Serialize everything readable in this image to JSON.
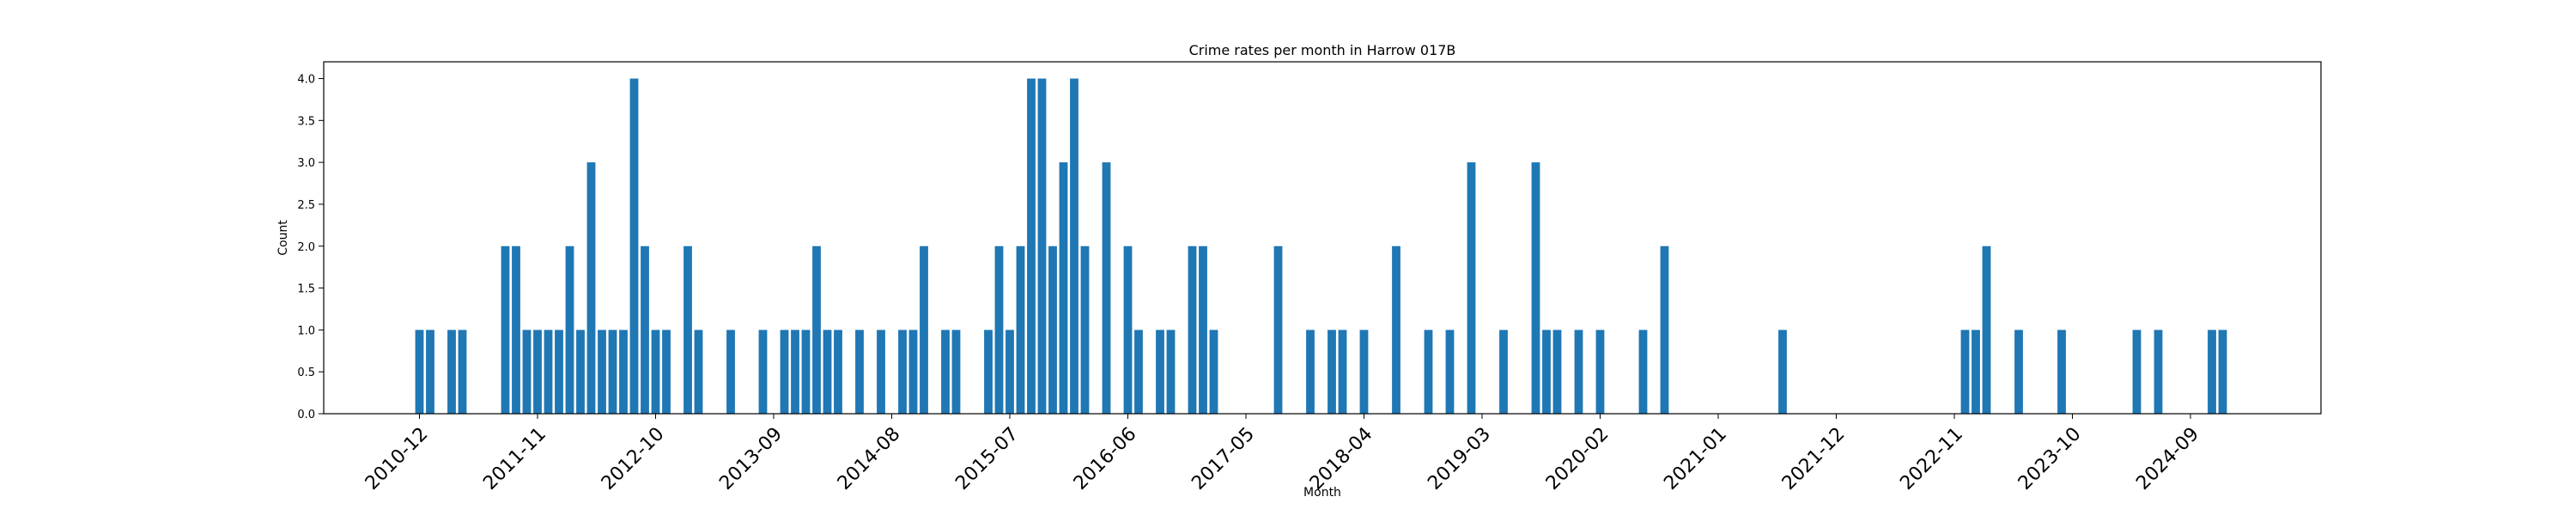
{
  "chart_data": {
    "type": "bar",
    "title": "Crime rates per month in Harrow 017B",
    "xlabel": "Month",
    "ylabel": "Count",
    "ylim": [
      0,
      4.2
    ],
    "yticks": [
      "0.0",
      "0.5",
      "1.0",
      "1.5",
      "2.0",
      "2.5",
      "3.0",
      "3.5",
      "4.0"
    ],
    "xticks": [
      "2010-12",
      "2011-11",
      "2012-10",
      "2013-09",
      "2014-08",
      "2015-07",
      "2016-06",
      "2017-05",
      "2018-04",
      "2019-03",
      "2020-02",
      "2021-01",
      "2021-12",
      "2022-11",
      "2023-10",
      "2024-09"
    ],
    "bar_color": "#1f77b4",
    "grid": false,
    "categories": [
      "2010-12",
      "2011-01",
      "2011-03",
      "2011-04",
      "2011-08",
      "2011-09",
      "2011-10",
      "2011-11",
      "2011-12",
      "2012-01",
      "2012-02",
      "2012-03",
      "2012-04",
      "2012-05",
      "2012-06",
      "2012-07",
      "2012-08",
      "2012-09",
      "2012-10",
      "2012-11",
      "2013-01",
      "2013-02",
      "2013-05",
      "2013-08",
      "2013-10",
      "2013-11",
      "2013-12",
      "2014-01",
      "2014-02",
      "2014-03",
      "2014-05",
      "2014-07",
      "2014-09",
      "2014-10",
      "2014-11",
      "2015-01",
      "2015-02",
      "2015-05",
      "2015-06",
      "2015-07",
      "2015-08",
      "2015-09",
      "2015-10",
      "2015-11",
      "2015-12",
      "2016-01",
      "2016-02",
      "2016-04",
      "2016-06",
      "2016-07",
      "2016-09",
      "2016-10",
      "2016-12",
      "2017-01",
      "2017-02",
      "2017-08",
      "2017-11",
      "2018-01",
      "2018-02",
      "2018-04",
      "2018-07",
      "2018-10",
      "2018-12",
      "2019-02",
      "2019-05",
      "2019-08",
      "2019-09",
      "2019-10",
      "2019-12",
      "2020-02",
      "2020-06",
      "2020-08",
      "2021-07",
      "2022-12",
      "2023-01",
      "2023-02",
      "2023-05",
      "2023-09",
      "2024-04",
      "2024-06",
      "2024-11",
      "2024-12"
    ],
    "values": [
      1,
      1,
      1,
      1,
      2,
      2,
      1,
      1,
      1,
      1,
      2,
      1,
      3,
      1,
      1,
      1,
      4,
      2,
      1,
      1,
      2,
      1,
      1,
      1,
      1,
      1,
      1,
      2,
      1,
      1,
      1,
      1,
      1,
      1,
      2,
      1,
      1,
      1,
      2,
      1,
      2,
      4,
      4,
      2,
      3,
      4,
      2,
      3,
      2,
      1,
      1,
      1,
      2,
      2,
      1,
      2,
      1,
      1,
      1,
      1,
      2,
      1,
      1,
      3,
      1,
      3,
      1,
      1,
      1,
      1,
      1,
      2,
      1,
      1,
      1,
      2,
      1,
      1,
      1,
      1,
      1,
      1
    ]
  }
}
